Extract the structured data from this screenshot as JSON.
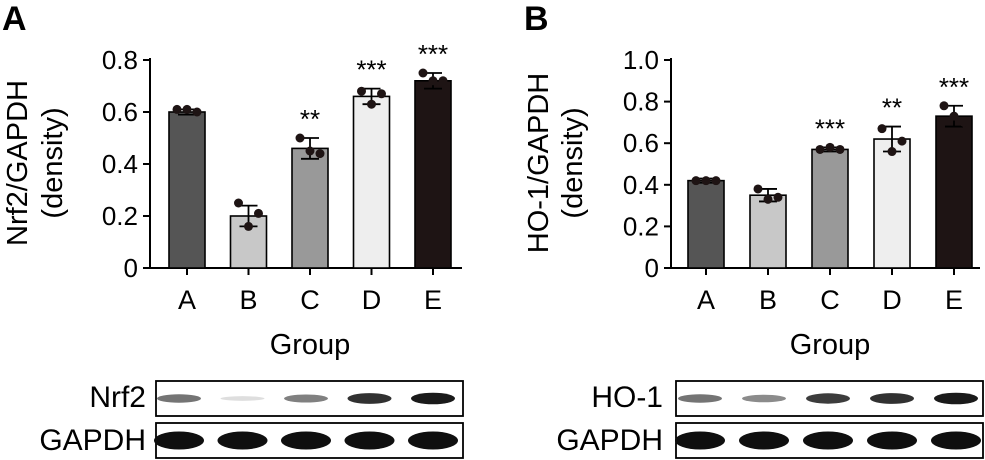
{
  "colors": {
    "A": "#555555",
    "B": "#c8c8c8",
    "C": "#999999",
    "D": "#eeeeee",
    "E": "#1e1414"
  },
  "chart_data": [
    {
      "type": "bar",
      "panel": "A",
      "categories": [
        "A",
        "B",
        "C",
        "D",
        "E"
      ],
      "values": [
        0.6,
        0.2,
        0.46,
        0.66,
        0.72
      ],
      "errors": [
        0.01,
        0.04,
        0.04,
        0.03,
        0.03
      ],
      "points": [
        [
          0.61,
          0.61,
          0.6
        ],
        [
          0.25,
          0.16,
          0.21
        ],
        [
          0.5,
          0.45,
          0.44
        ],
        [
          0.68,
          0.63,
          0.67
        ],
        [
          0.75,
          0.72,
          0.72
        ]
      ],
      "significance": [
        "",
        "",
        "**",
        "***",
        "***"
      ],
      "ylabel_line1": "Nrf2/GAPDH",
      "ylabel_line2": "(density)",
      "xlabel": "Group",
      "ylim": [
        0,
        0.8
      ],
      "yticks": [
        "0",
        "0.2",
        "0.4",
        "0.6",
        "0.8"
      ],
      "blot_labels": [
        "Nrf2",
        "GAPDH"
      ],
      "band_intensity": [
        [
          0.55,
          0.08,
          0.5,
          0.85,
          0.95
        ],
        [
          1,
          1,
          1,
          1,
          1
        ]
      ]
    },
    {
      "type": "bar",
      "panel": "B",
      "categories": [
        "A",
        "B",
        "C",
        "D",
        "E"
      ],
      "values": [
        0.42,
        0.35,
        0.57,
        0.62,
        0.73
      ],
      "errors": [
        0.01,
        0.03,
        0.01,
        0.06,
        0.05
      ],
      "points": [
        [
          0.42,
          0.42,
          0.42
        ],
        [
          0.38,
          0.33,
          0.34
        ],
        [
          0.57,
          0.58,
          0.57
        ],
        [
          0.67,
          0.56,
          0.61
        ],
        [
          0.78,
          0.73,
          0.7
        ]
      ],
      "significance": [
        "",
        "",
        "***",
        "**",
        "***"
      ],
      "ylabel_line1": "HO-1/GAPDH",
      "ylabel_line2": "(density)",
      "xlabel": "Group",
      "ylim": [
        0,
        1.0
      ],
      "yticks": [
        "0",
        "0.2",
        "0.4",
        "0.6",
        "0.8",
        "1.0"
      ],
      "blot_labels": [
        "HO-1",
        "GAPDH"
      ],
      "band_intensity": [
        [
          0.55,
          0.45,
          0.8,
          0.85,
          0.95
        ],
        [
          1,
          1,
          1,
          1,
          1
        ]
      ]
    }
  ]
}
